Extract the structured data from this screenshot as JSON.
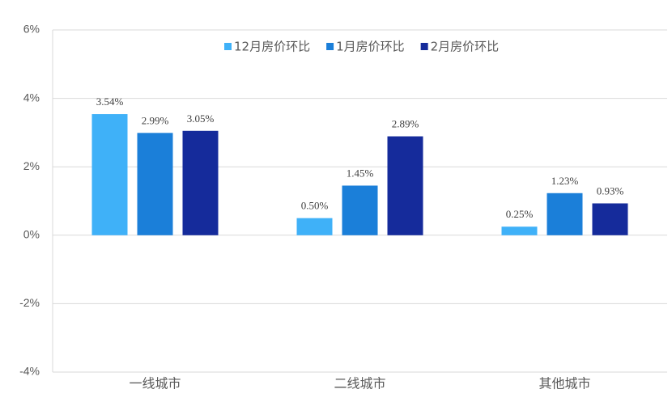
{
  "chart_data": {
    "type": "bar",
    "categories": [
      "一线城市",
      "二线城市",
      "其他城市"
    ],
    "series": [
      {
        "name": "12月房价环比",
        "color": "#3fb1f8",
        "values": [
          3.54,
          0.5,
          0.25
        ],
        "value_labels": [
          "3.54%",
          "0.50%",
          "0.25%"
        ]
      },
      {
        "name": "1月房价环比",
        "color": "#1b7fd9",
        "values": [
          2.99,
          1.45,
          1.23
        ],
        "value_labels": [
          "2.99%",
          "1.45%",
          "1.23%"
        ]
      },
      {
        "name": "2月房价环比",
        "color": "#152b9b",
        "values": [
          3.05,
          2.89,
          0.93
        ],
        "value_labels": [
          "3.05%",
          "2.89%",
          "0.93%"
        ]
      }
    ],
    "ylim": [
      -4,
      6
    ],
    "yticks": [
      {
        "value": -4,
        "label": "-4%"
      },
      {
        "value": -2,
        "label": "-2%"
      },
      {
        "value": 0,
        "label": "0%"
      },
      {
        "value": 2,
        "label": "2%"
      },
      {
        "value": 4,
        "label": "4%"
      },
      {
        "value": 6,
        "label": "6%"
      }
    ],
    "grid": true
  }
}
